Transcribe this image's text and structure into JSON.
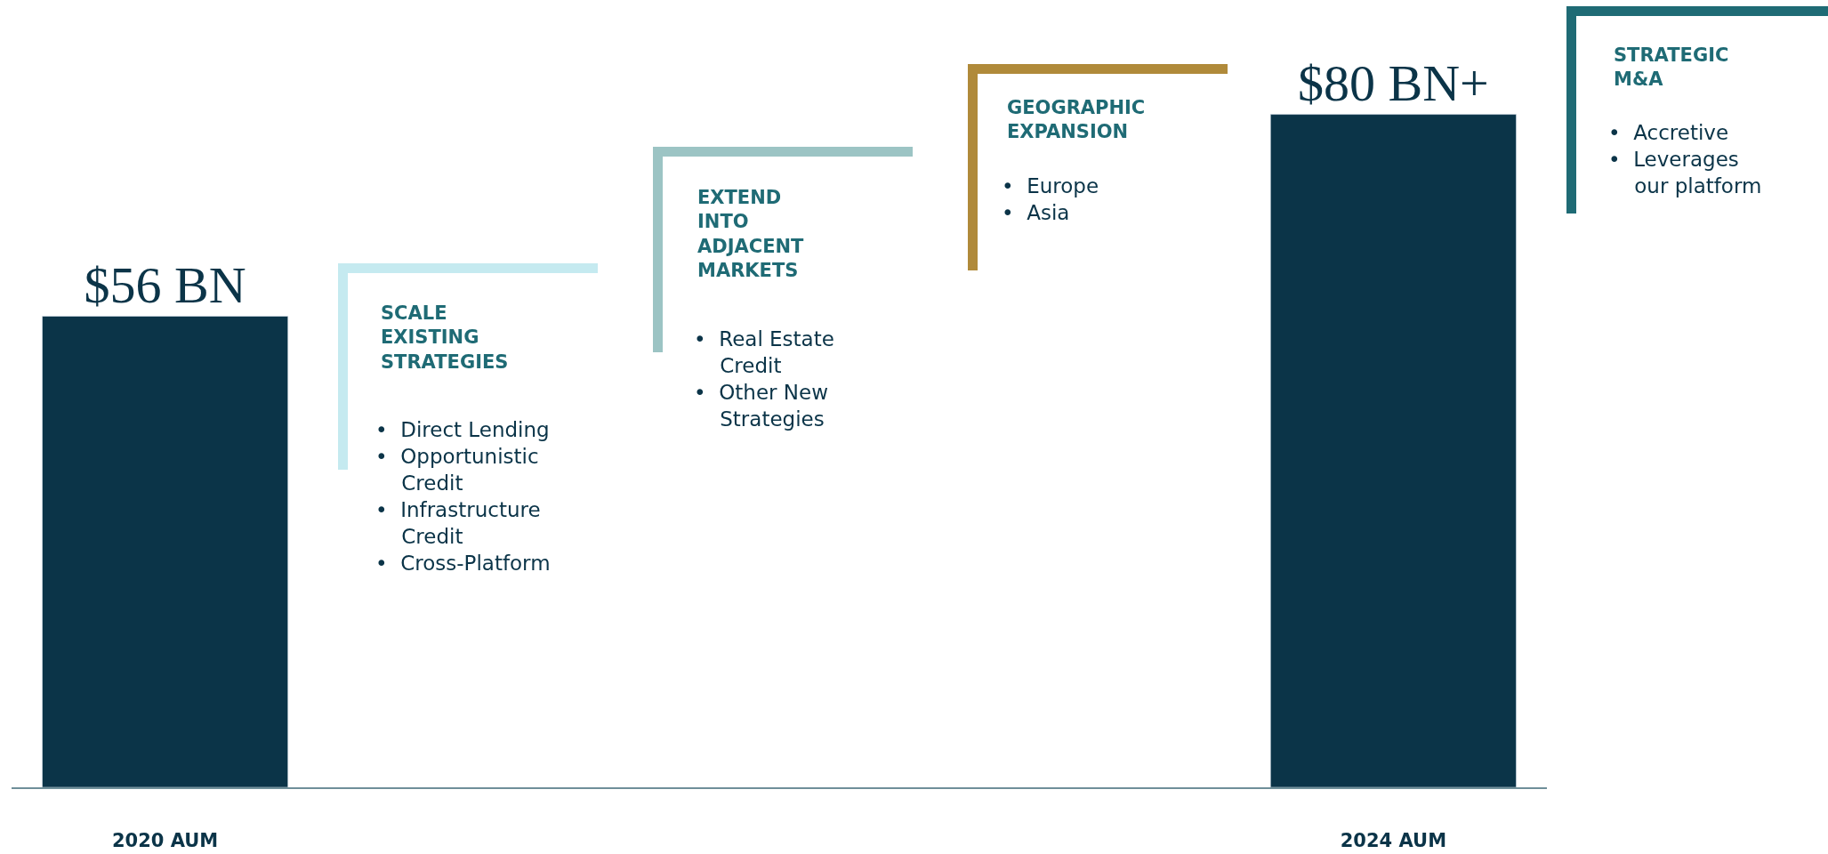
{
  "chart_data": {
    "type": "bar",
    "tick_labels": "x",
    "categories": [
      "2020 AUM",
      null,
      null,
      null,
      "2024 AUM"
    ],
    "values": [
      56,
      null,
      null,
      null,
      80
    ],
    "value_labels": [
      "$56 BN",
      null,
      null,
      null,
      "$80 BN+"
    ],
    "color": "#0b3448",
    "annotations": [
      "SCALE\nEXISTING\nSTRATEGIES",
      "•  Direct Lending\n•  Opportunistic\n    Credit\n•  Infrastructure\n    Credit\n•  Cross-Platform",
      "EXTEND\nINTO\nADJACENT\nMARKETS",
      "•  Real Estate\n    Credit\n•  Other New\n    Strategies",
      "GEOGRAPHIC\nEXPANSION",
      "•  Europe\n•  Asia",
      "STRATEGIC\nM&A",
      "•  Accretive\n•  Leverages\n    our platform"
    ],
    "legend": false
  }
}
